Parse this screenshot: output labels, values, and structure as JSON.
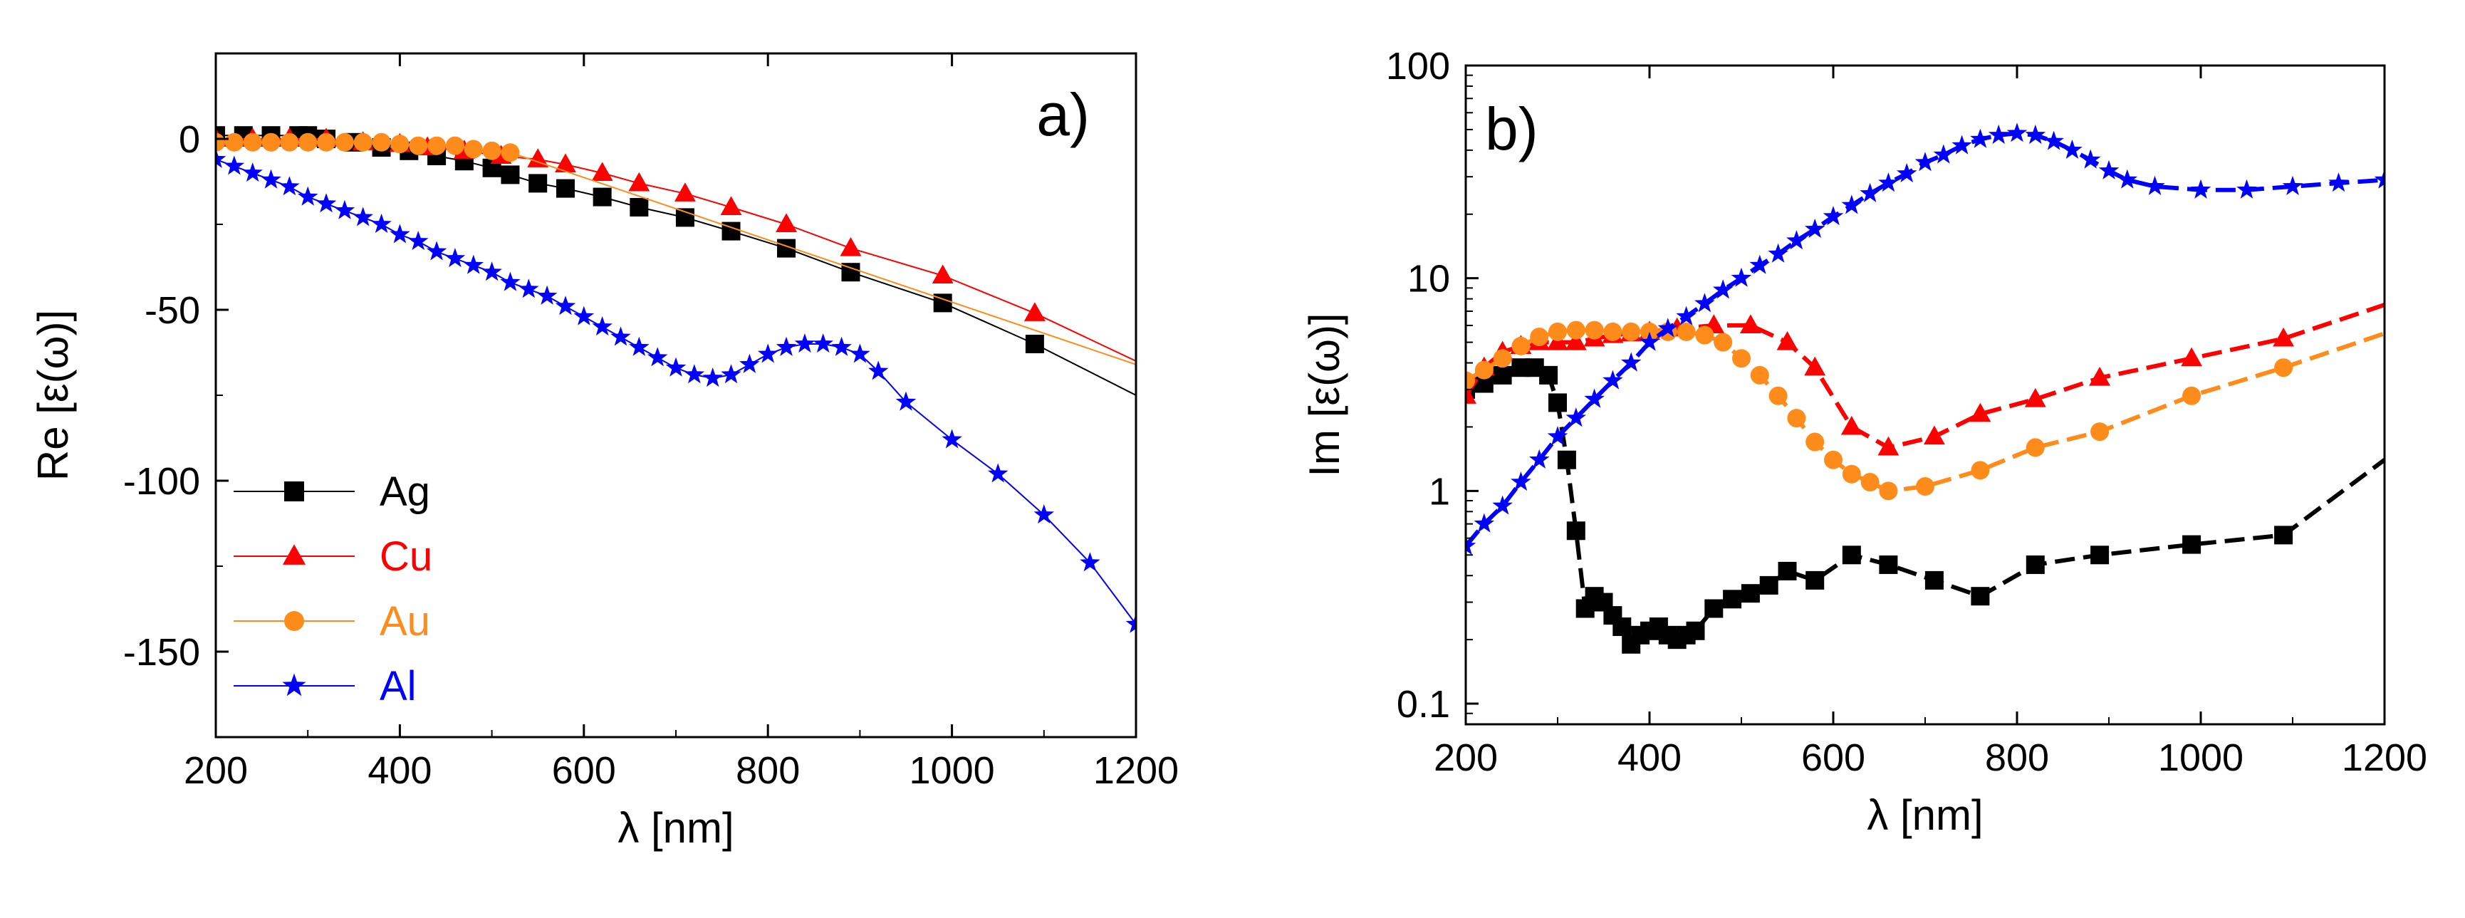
{
  "chart_data": [
    {
      "type": "line",
      "panel_label": "a)",
      "xlabel": "λ [nm]",
      "ylabel": "Re [ε(ω)]",
      "xlim": [
        200,
        1200
      ],
      "ylim": [
        -175,
        25
      ],
      "xticks": [
        200,
        400,
        600,
        800,
        1000,
        1200
      ],
      "yticks": [
        0,
        -50,
        -100,
        -150
      ],
      "xtick_labels": [
        "200",
        "400",
        "600",
        "800",
        "1000",
        "1200"
      ],
      "ytick_labels": [
        "0",
        "-50",
        "-100",
        "-150"
      ],
      "legend_position": "bottom-left",
      "series": [
        {
          "name": "Ag",
          "color": "#000000",
          "marker": "square",
          "x": [
            200,
            230,
            260,
            290,
            300,
            320,
            350,
            380,
            410,
            440,
            470,
            500,
            520,
            550,
            580,
            620,
            660,
            710,
            760,
            820,
            890,
            990,
            1090,
            1200
          ],
          "y": [
            1,
            1,
            1,
            1,
            1,
            0,
            -1,
            -2.5,
            -3.5,
            -5,
            -6.5,
            -8.5,
            -10.5,
            -13,
            -14.5,
            -17,
            -20,
            -23,
            -27,
            -32,
            -39,
            -48,
            -60,
            -75
          ]
        },
        {
          "name": "Cu",
          "color": "#ff0000",
          "marker": "triangle",
          "x": [
            200,
            240,
            280,
            320,
            360,
            400,
            430,
            470,
            510,
            550,
            580,
            620,
            660,
            710,
            760,
            820,
            890,
            990,
            1090,
            1200
          ],
          "y": [
            0,
            0,
            0,
            0,
            -1,
            -1.5,
            -2.5,
            -3.5,
            -5,
            -6,
            -7.5,
            -10,
            -13,
            -16,
            -20,
            -25,
            -32,
            -40,
            -51,
            -65
          ]
        },
        {
          "name": "Au",
          "color": "#ff8c1a",
          "marker": "circle",
          "x": [
            200,
            220,
            240,
            260,
            280,
            300,
            320,
            340,
            360,
            380,
            400,
            420,
            440,
            460,
            480,
            500,
            520,
            1200
          ],
          "y": [
            -1,
            -1,
            -1,
            -1,
            -1,
            -1,
            -1,
            -1,
            -1,
            -1,
            -1.5,
            -2,
            -2,
            -2,
            -3,
            -3.5,
            -4,
            -66
          ]
        },
        {
          "name": "Al",
          "color": "#0000ff",
          "marker": "star",
          "x": [
            200,
            220,
            240,
            260,
            280,
            300,
            320,
            340,
            360,
            380,
            400,
            420,
            440,
            460,
            480,
            500,
            520,
            540,
            560,
            580,
            600,
            620,
            640,
            660,
            680,
            700,
            720,
            740,
            760,
            780,
            800,
            820,
            840,
            860,
            880,
            900,
            920,
            950,
            1000,
            1050,
            1100,
            1150,
            1200
          ],
          "y": [
            -6,
            -8,
            -10,
            -12,
            -14,
            -17,
            -19,
            -21,
            -23,
            -25,
            -28,
            -30,
            -33,
            -35,
            -37,
            -39,
            -42,
            -44,
            -46,
            -49,
            -52,
            -55,
            -58,
            -61,
            -64,
            -67,
            -69,
            -70,
            -69,
            -66,
            -63,
            -61,
            -60,
            -60,
            -61,
            -63,
            -68,
            -77,
            -88,
            -98,
            -110,
            -124,
            -142
          ]
        }
      ]
    },
    {
      "type": "line",
      "panel_label": "b)",
      "xlabel": "λ [nm]",
      "ylabel": "Im [ε(ω)]",
      "xlim": [
        200,
        1200
      ],
      "yscale": "log",
      "ylim": [
        0.08,
        100
      ],
      "xticks": [
        200,
        400,
        600,
        800,
        1000,
        1200
      ],
      "yticks": [
        0.1,
        1,
        10,
        100
      ],
      "xtick_labels": [
        "200",
        "400",
        "600",
        "800",
        "1000",
        "1200"
      ],
      "ytick_labels": [
        "0.1",
        "1",
        "10",
        "100"
      ],
      "series": [
        {
          "name": "Ag",
          "color": "#000000",
          "marker": "square",
          "x": [
            200,
            220,
            240,
            260,
            275,
            290,
            300,
            310,
            320,
            330,
            340,
            350,
            360,
            370,
            380,
            390,
            400,
            410,
            420,
            430,
            440,
            450,
            470,
            490,
            510,
            530,
            550,
            580,
            620,
            660,
            710,
            760,
            820,
            890,
            990,
            1090,
            1200
          ],
          "y": [
            3,
            3.2,
            3.5,
            3.8,
            3.8,
            3.5,
            2.6,
            1.4,
            0.65,
            0.28,
            0.32,
            0.3,
            0.26,
            0.23,
            0.19,
            0.21,
            0.22,
            0.23,
            0.21,
            0.2,
            0.21,
            0.22,
            0.28,
            0.31,
            0.33,
            0.36,
            0.42,
            0.38,
            0.5,
            0.45,
            0.38,
            0.32,
            0.45,
            0.5,
            0.56,
            0.62,
            1.4
          ]
        },
        {
          "name": "Cu",
          "color": "#ff0000",
          "marker": "triangle",
          "x": [
            200,
            220,
            240,
            260,
            280,
            300,
            320,
            340,
            360,
            380,
            400,
            430,
            470,
            510,
            550,
            580,
            620,
            660,
            710,
            760,
            820,
            890,
            990,
            1090,
            1200
          ],
          "y": [
            2.8,
            3.8,
            4.5,
            4.8,
            5,
            5,
            5,
            5.2,
            5.4,
            5.5,
            5.6,
            5.8,
            6,
            6,
            5,
            3.8,
            2.0,
            1.6,
            1.8,
            2.3,
            2.7,
            3.4,
            4.2,
            5.2,
            7.5
          ]
        },
        {
          "name": "Au",
          "color": "#ff8c1a",
          "marker": "circle",
          "x": [
            200,
            220,
            240,
            260,
            280,
            300,
            320,
            340,
            360,
            380,
            400,
            420,
            440,
            460,
            480,
            500,
            520,
            540,
            560,
            580,
            600,
            620,
            640,
            660,
            700,
            760,
            820,
            890,
            990,
            1090,
            1200
          ],
          "y": [
            3.3,
            3.7,
            4.2,
            4.8,
            5.3,
            5.6,
            5.7,
            5.7,
            5.6,
            5.6,
            5.6,
            5.6,
            5.6,
            5.4,
            5.0,
            4.2,
            3.5,
            2.8,
            2.2,
            1.7,
            1.4,
            1.2,
            1.1,
            1.0,
            1.05,
            1.25,
            1.6,
            1.9,
            2.8,
            3.8,
            5.5
          ]
        },
        {
          "name": "Al",
          "color": "#0000ff",
          "marker": "star",
          "x": [
            200,
            220,
            240,
            260,
            280,
            300,
            320,
            340,
            360,
            380,
            400,
            420,
            440,
            460,
            480,
            500,
            520,
            540,
            560,
            580,
            600,
            620,
            640,
            660,
            680,
            700,
            720,
            740,
            760,
            780,
            800,
            820,
            840,
            860,
            880,
            900,
            920,
            950,
            1000,
            1050,
            1100,
            1150,
            1200
          ],
          "y": [
            0.55,
            0.7,
            0.85,
            1.1,
            1.4,
            1.8,
            2.2,
            2.7,
            3.3,
            4.0,
            5.0,
            5.8,
            6.6,
            7.6,
            8.8,
            10,
            11.5,
            13,
            15,
            17,
            19.5,
            22,
            25,
            28,
            31,
            35,
            38,
            42,
            45,
            47,
            48,
            47,
            44,
            40,
            36,
            32,
            29,
            27,
            26,
            26,
            27,
            28,
            29
          ]
        }
      ]
    }
  ]
}
